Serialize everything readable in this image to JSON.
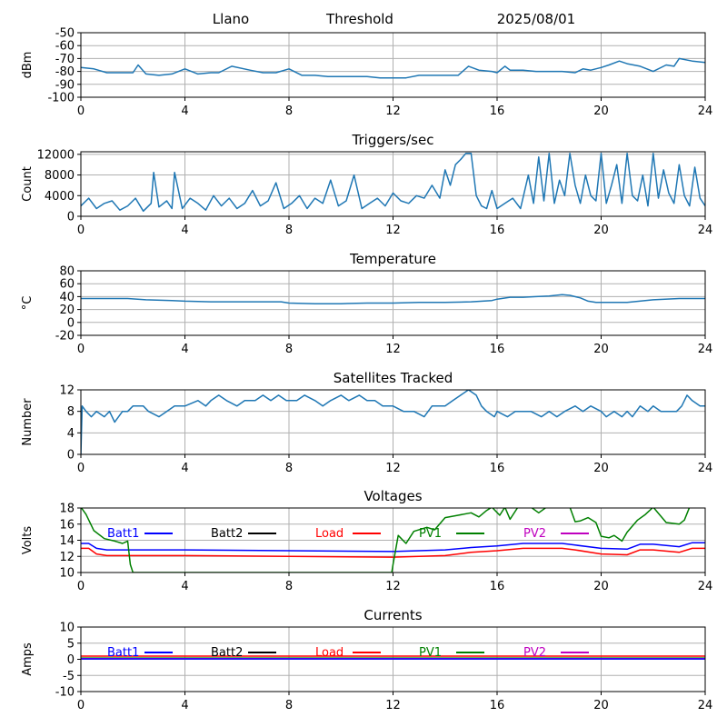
{
  "header": {
    "station": "Llano",
    "label": "Threshold",
    "date": "2025/08/01"
  },
  "colors": {
    "line": "#1f77b4",
    "grid": "#b0b0b0",
    "batt1": "#0000ff",
    "batt2": "#000000",
    "load": "#ff0000",
    "pv1": "#008000",
    "pv2": "#bf00bf"
  },
  "x_ticks": [
    "0",
    "4",
    "8",
    "12",
    "16",
    "20",
    "24"
  ],
  "chart_data": [
    {
      "id": "threshold",
      "type": "line",
      "title": "",
      "xlabel": "",
      "ylabel": "dBm",
      "xlim": [
        0,
        24
      ],
      "ylim": [
        -100,
        -50
      ],
      "yticks": [
        -100,
        -90,
        -80,
        -70,
        -60,
        -50
      ],
      "grid": true,
      "series": [
        {
          "x": [
            0,
            0.5,
            1,
            1.5,
            2,
            2.2,
            2.5,
            3,
            3.5,
            4,
            4.5,
            5,
            5.3,
            5.8,
            6.5,
            7,
            7.5,
            8,
            8.5,
            9,
            9.5,
            10,
            10.5,
            11,
            11.5,
            12,
            12.5,
            13,
            13.5,
            14,
            14.5,
            14.9,
            15.3,
            15.8,
            16,
            16.3,
            16.5,
            17,
            17.5,
            18,
            18.5,
            19,
            19.3,
            19.6,
            20,
            20.3,
            20.7,
            21,
            21.5,
            22,
            22.5,
            22.8,
            23,
            23.5,
            24
          ],
          "values": [
            -77,
            -78,
            -81,
            -81,
            -81,
            -75,
            -82,
            -83,
            -82,
            -78,
            -82,
            -81,
            -81,
            -76,
            -79,
            -81,
            -81,
            -78,
            -83,
            -83,
            -84,
            -84,
            -84,
            -84,
            -85,
            -85,
            -85,
            -83,
            -83,
            -83,
            -83,
            -76,
            -79,
            -80,
            -81,
            -76,
            -79,
            -79,
            -80,
            -80,
            -80,
            -81,
            -78,
            -79,
            -77,
            -75,
            -72,
            -74,
            -76,
            -80,
            -75,
            -76,
            -70,
            -72,
            -73
          ]
        }
      ]
    },
    {
      "id": "triggers",
      "type": "line",
      "title": "Triggers/sec",
      "xlabel": "",
      "ylabel": "Count",
      "xlim": [
        0,
        24
      ],
      "ylim": [
        0,
        12500
      ],
      "yticks": [
        0,
        4000,
        8000,
        12000
      ],
      "grid": true,
      "series": [
        {
          "x": [
            0,
            0.3,
            0.6,
            0.9,
            1.2,
            1.5,
            1.8,
            2.1,
            2.4,
            2.7,
            2.8,
            3,
            3.3,
            3.5,
            3.6,
            3.9,
            4.2,
            4.5,
            4.8,
            5.1,
            5.4,
            5.7,
            6,
            6.3,
            6.6,
            6.9,
            7.2,
            7.5,
            7.8,
            8.1,
            8.4,
            8.7,
            9,
            9.3,
            9.6,
            9.9,
            10.2,
            10.5,
            10.8,
            11.1,
            11.4,
            11.7,
            12,
            12.3,
            12.6,
            12.9,
            13.2,
            13.5,
            13.8,
            14,
            14.2,
            14.4,
            14.6,
            14.8,
            15,
            15.2,
            15.4,
            15.6,
            15.8,
            16,
            16.3,
            16.6,
            16.9,
            17.2,
            17.4,
            17.6,
            17.8,
            18,
            18.2,
            18.4,
            18.6,
            18.8,
            19,
            19.2,
            19.4,
            19.6,
            19.8,
            20,
            20.2,
            20.4,
            20.6,
            20.8,
            21,
            21.2,
            21.4,
            21.6,
            21.8,
            22,
            22.2,
            22.4,
            22.6,
            22.8,
            23,
            23.2,
            23.4,
            23.6,
            23.8,
            24
          ],
          "values": [
            2000,
            3500,
            1500,
            2500,
            3000,
            1200,
            2000,
            3500,
            1000,
            2500,
            8500,
            1800,
            3000,
            1500,
            8500,
            1500,
            3500,
            2500,
            1200,
            4000,
            2000,
            3500,
            1500,
            2500,
            5000,
            2000,
            3000,
            6500,
            1500,
            2500,
            4000,
            1500,
            3500,
            2500,
            7000,
            2000,
            3000,
            8000,
            1500,
            2500,
            3500,
            2000,
            4500,
            3000,
            2500,
            4000,
            3500,
            6000,
            3500,
            9000,
            6000,
            10000,
            11000,
            12200,
            12200,
            4000,
            2000,
            1500,
            5000,
            1500,
            2500,
            3500,
            1500,
            8000,
            2500,
            11500,
            3000,
            12200,
            2500,
            7000,
            4000,
            12200,
            6000,
            2500,
            8000,
            4000,
            3000,
            12200,
            2500,
            6000,
            10000,
            2500,
            12200,
            4000,
            3000,
            8000,
            2000,
            12200,
            3500,
            9000,
            4500,
            2500,
            10000,
            4000,
            2000,
            9500,
            3500,
            2000
          ]
        }
      ]
    },
    {
      "id": "temperature",
      "type": "line",
      "title": "Temperature",
      "xlabel": "",
      "ylabel": "°C",
      "xlim": [
        0,
        24
      ],
      "ylim": [
        -20,
        80
      ],
      "yticks": [
        -20,
        0,
        20,
        40,
        60,
        80
      ],
      "grid": true,
      "series": [
        {
          "x": [
            0,
            1,
            1.8,
            2.5,
            3.5,
            4,
            5,
            6,
            7,
            7.7,
            8,
            9,
            10,
            11,
            12,
            13,
            14,
            15,
            15.8,
            16,
            16.5,
            17,
            17.5,
            18,
            18.5,
            18.8,
            19.2,
            19.5,
            19.8,
            20,
            21,
            22,
            23,
            24
          ],
          "values": [
            37,
            37,
            37,
            35,
            34,
            33,
            32,
            32,
            32,
            32,
            30,
            29,
            29,
            30,
            30,
            31,
            31,
            32,
            34,
            36,
            39,
            39,
            40,
            41,
            43,
            42,
            38,
            33,
            31,
            31,
            31,
            35,
            37,
            37
          ]
        }
      ]
    },
    {
      "id": "satellites",
      "type": "line",
      "title": "Satellites Tracked",
      "xlabel": "",
      "ylabel": "Number",
      "xlim": [
        0,
        24
      ],
      "ylim": [
        0,
        12
      ],
      "yticks": [
        0,
        4,
        8,
        12
      ],
      "grid": true,
      "series": [
        {
          "x": [
            0,
            0.05,
            0.2,
            0.4,
            0.6,
            0.9,
            1.1,
            1.3,
            1.45,
            1.6,
            1.8,
            2,
            2.4,
            2.6,
            3,
            3.3,
            3.6,
            4,
            4.5,
            4.8,
            5,
            5.3,
            5.6,
            6,
            6.3,
            6.7,
            7,
            7.3,
            7.6,
            7.9,
            8.3,
            8.6,
            9,
            9.3,
            9.6,
            10,
            10.3,
            10.7,
            11,
            11.3,
            11.6,
            12,
            12.4,
            12.8,
            13.2,
            13.5,
            14,
            14.3,
            14.6,
            14.9,
            15.2,
            15.4,
            15.6,
            15.9,
            16,
            16.4,
            16.7,
            17,
            17.3,
            17.7,
            18,
            18.3,
            18.6,
            19,
            19.3,
            19.6,
            20,
            20.2,
            20.5,
            20.8,
            21,
            21.2,
            21.5,
            21.8,
            22,
            22.3,
            22.6,
            22.9,
            23.1,
            23.3,
            23.5,
            23.8,
            24
          ],
          "values": [
            0,
            9,
            8,
            7,
            8,
            7,
            8,
            6,
            7,
            8,
            8,
            9,
            9,
            8,
            7,
            8,
            9,
            9,
            10,
            9,
            10,
            11,
            10,
            9,
            10,
            10,
            11,
            10,
            11,
            10,
            10,
            11,
            10,
            9,
            10,
            11,
            10,
            11,
            10,
            10,
            9,
            9,
            8,
            8,
            7,
            9,
            9,
            10,
            11,
            12,
            11,
            9,
            8,
            7,
            8,
            7,
            8,
            8,
            8,
            7,
            8,
            7,
            8,
            9,
            8,
            9,
            8,
            7,
            8,
            7,
            8,
            7,
            9,
            8,
            9,
            8,
            8,
            8,
            9,
            11,
            10,
            9,
            9
          ]
        }
      ]
    },
    {
      "id": "voltages",
      "type": "line",
      "title": "Voltages",
      "xlabel": "",
      "ylabel": "Volts",
      "xlim": [
        0,
        24
      ],
      "ylim": [
        10,
        18
      ],
      "yticks": [
        10,
        12,
        14,
        16,
        18
      ],
      "grid": true,
      "legend": [
        {
          "name": "Batt1",
          "key": "batt1"
        },
        {
          "name": "Batt2",
          "key": "batt2"
        },
        {
          "name": "Load",
          "key": "load"
        },
        {
          "name": "PV1",
          "key": "pv1"
        },
        {
          "name": "PV2",
          "key": "pv2"
        }
      ],
      "series": [
        {
          "name": "Batt1",
          "key": "batt1",
          "x": [
            0,
            0.3,
            0.6,
            1,
            4,
            8,
            12,
            14,
            15,
            16,
            17,
            18,
            18.5,
            19,
            20,
            21,
            21.5,
            22,
            23,
            23.5,
            24
          ],
          "values": [
            13.6,
            13.6,
            13.0,
            12.8,
            12.8,
            12.7,
            12.6,
            12.8,
            13.1,
            13.3,
            13.6,
            13.6,
            13.6,
            13.4,
            13.0,
            12.9,
            13.5,
            13.5,
            13.2,
            13.7,
            13.7
          ]
        },
        {
          "name": "Load",
          "key": "load",
          "x": [
            0,
            0.3,
            0.6,
            1,
            4,
            8,
            12,
            14,
            15,
            16,
            17,
            18,
            18.5,
            19,
            20,
            21,
            21.5,
            22,
            23,
            23.5,
            24
          ],
          "values": [
            13.0,
            13.0,
            12.3,
            12.1,
            12.1,
            12.0,
            11.9,
            12.1,
            12.5,
            12.7,
            13.0,
            13.0,
            13.0,
            12.8,
            12.3,
            12.2,
            12.8,
            12.8,
            12.5,
            13.0,
            13.0
          ]
        },
        {
          "name": "PV1",
          "key": "pv1",
          "x": [
            0,
            0.2,
            0.5,
            0.9,
            1.3,
            1.6,
            1.8,
            1.9,
            2.0,
            11.95,
            12.0,
            12.2,
            12.5,
            12.8,
            13.3,
            13.6,
            14,
            14.5,
            15,
            15.3,
            15.6,
            15.8,
            16.1,
            16.3,
            16.5,
            16.8,
            17,
            17.3,
            17.6,
            17.9,
            18.2,
            18.5,
            18.8,
            19,
            19.2,
            19.5,
            19.8,
            20,
            20.3,
            20.5,
            20.8,
            21,
            21.4,
            21.7,
            22,
            22.5,
            23,
            23.2,
            23.4
          ],
          "values": [
            18.1,
            17.2,
            15.2,
            14.2,
            13.9,
            13.6,
            13.9,
            11.0,
            10.0,
            10.0,
            11.0,
            14.6,
            13.6,
            15.1,
            15.6,
            15.3,
            16.8,
            17.1,
            17.4,
            16.9,
            17.7,
            18.1,
            17.1,
            18.1,
            16.6,
            18.1,
            18.1,
            18.1,
            17.4,
            18.1,
            18.1,
            18.1,
            18.1,
            16.3,
            16.4,
            16.8,
            16.2,
            14.5,
            14.3,
            14.6,
            13.9,
            15.0,
            16.5,
            17.2,
            18.1,
            16.2,
            16.0,
            16.5,
            18.1
          ]
        }
      ]
    },
    {
      "id": "currents",
      "type": "line",
      "title": "Currents",
      "xlabel": "",
      "ylabel": "Amps",
      "xlim": [
        0,
        24
      ],
      "ylim": [
        -10,
        10
      ],
      "yticks": [
        -10,
        -5,
        0,
        5,
        10
      ],
      "grid": true,
      "legend": [
        {
          "name": "Batt1",
          "key": "batt1"
        },
        {
          "name": "Batt2",
          "key": "batt2"
        },
        {
          "name": "Load",
          "key": "load"
        },
        {
          "name": "PV1",
          "key": "pv1"
        },
        {
          "name": "PV2",
          "key": "pv2"
        }
      ],
      "series": [
        {
          "name": "Load",
          "key": "load",
          "x": [
            0,
            24
          ],
          "values": [
            1.0,
            1.0
          ]
        },
        {
          "name": "PV1",
          "key": "pv1",
          "x": [
            0,
            24
          ],
          "values": [
            0.4,
            0.4
          ]
        },
        {
          "name": "PV2",
          "key": "pv2",
          "x": [
            0,
            24
          ],
          "values": [
            0.2,
            0.2
          ]
        },
        {
          "name": "Batt1",
          "key": "batt1",
          "x": [
            0,
            24
          ],
          "values": [
            0.1,
            0.1
          ]
        }
      ]
    }
  ]
}
